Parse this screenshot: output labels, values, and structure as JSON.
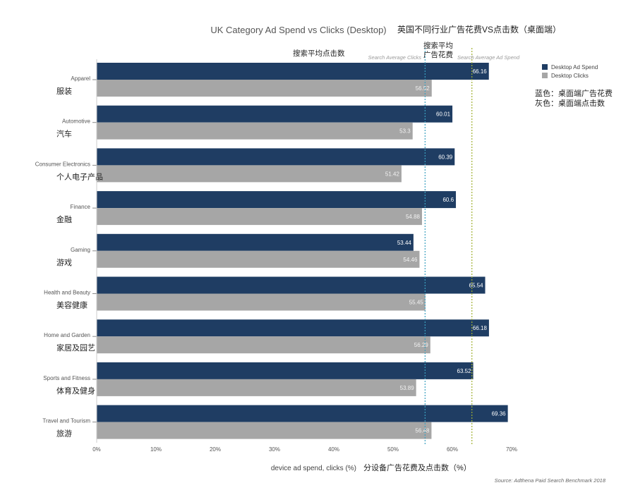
{
  "chart_data": {
    "type": "bar",
    "orientation": "horizontal",
    "title": "UK Category Ad Spend vs Clicks (Desktop)",
    "title_cn": "英国不同行业广告花费VS点击数（桌面端）",
    "categories": [
      {
        "en": "Apparel",
        "cn": "服装"
      },
      {
        "en": "Automotive",
        "cn": "汽车"
      },
      {
        "en": "Consumer Electronics",
        "cn": "个人电子产品"
      },
      {
        "en": "Finance",
        "cn": "金融"
      },
      {
        "en": "Gaming",
        "cn": "游戏"
      },
      {
        "en": "Health and Beauty",
        "cn": "美容健康"
      },
      {
        "en": "Home and Garden",
        "cn": "家居及园艺"
      },
      {
        "en": "Sports and Fitness",
        "cn": "体育及健身"
      },
      {
        "en": "Travel and Tourism",
        "cn": "旅游"
      }
    ],
    "series": [
      {
        "name": "Desktop Ad Spend",
        "color": "#1f3d63",
        "values": [
          66.16,
          60.01,
          60.39,
          60.6,
          53.44,
          65.54,
          66.18,
          63.52,
          69.36
        ],
        "labels": [
          "66.16",
          "60.01",
          "60.39",
          "60.6",
          "53.44",
          "65.54",
          "66.18",
          "63.52",
          "69.36"
        ]
      },
      {
        "name": "Desktop Clicks",
        "color": "#a6a6a6",
        "values": [
          56.52,
          53.3,
          51.42,
          54.88,
          54.46,
          55.45,
          56.29,
          53.89,
          56.48
        ],
        "labels": [
          "56.52",
          "53.3",
          "51.42",
          "54.88",
          "54.46",
          "55.45",
          "56.29",
          "53.89",
          "56.48"
        ]
      }
    ],
    "xlabel": "device ad spend, clicks (%)",
    "xlabel_cn": "分设备广告花费及点击数（%）",
    "xlim": [
      0,
      70
    ],
    "xticks": [
      "0%",
      "10%",
      "20%",
      "30%",
      "40%",
      "50%",
      "60%",
      "70%"
    ],
    "reference_lines": [
      {
        "label": "Search Average Clicks",
        "label_cn": "搜索平均点击数",
        "value": 55.4,
        "color": "#3aa0c0"
      },
      {
        "label": "Search Average Ad Spend",
        "label_cn": "搜索平均\n广告花费",
        "value": 63.3,
        "color": "#a0b030"
      }
    ],
    "legend_position": "top-right",
    "legend_note_cn": [
      "蓝色：桌面端广告花费",
      "灰色：桌面端点击数"
    ],
    "source": "Source: Adthena Paid Search Benchmark 2018"
  }
}
